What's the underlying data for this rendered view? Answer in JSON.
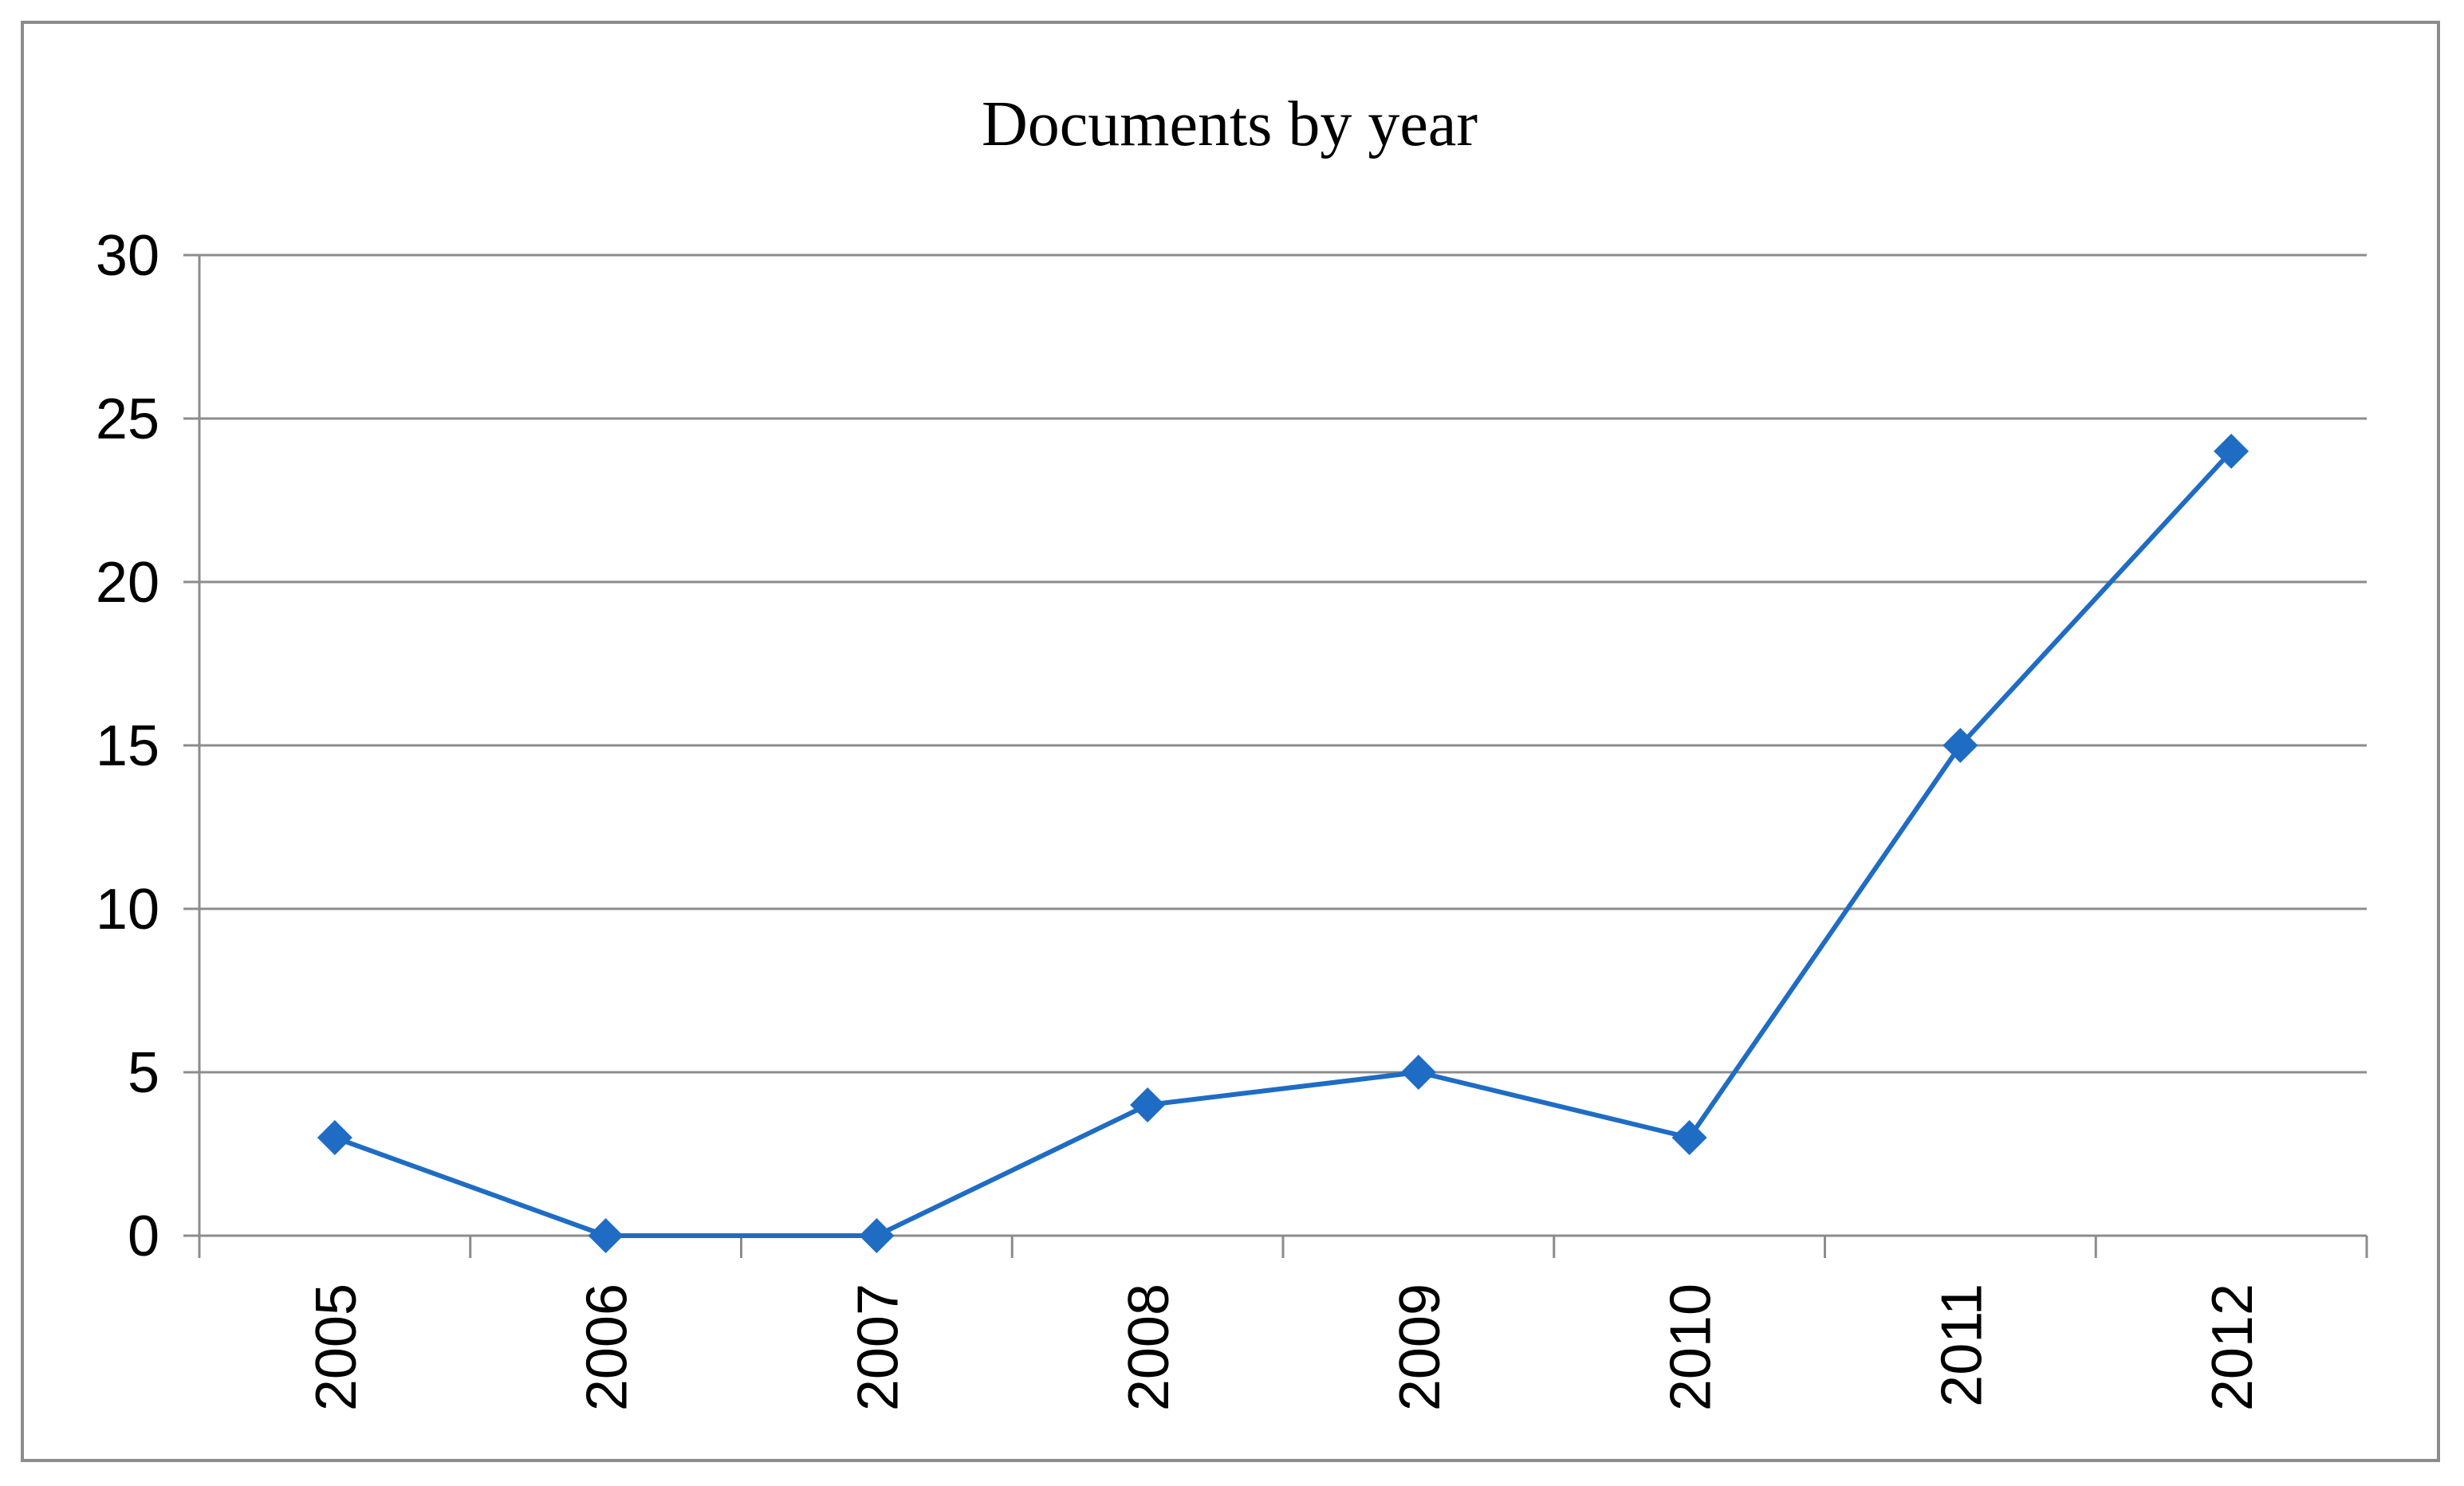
{
  "chart_data": {
    "type": "line",
    "title": "Documents by year",
    "xlabel": "",
    "ylabel": "",
    "categories": [
      "2005",
      "2006",
      "2007",
      "2008",
      "2009",
      "2010",
      "2011",
      "2012"
    ],
    "series": [
      {
        "values": [
          3,
          0,
          0,
          4,
          5,
          3,
          15,
          24
        ],
        "color": "#1f6cc4",
        "marker": "diamond"
      }
    ],
    "ylim": [
      0,
      30
    ],
    "yticks": [
      "0",
      "5",
      "10",
      "15",
      "20",
      "25",
      "30"
    ],
    "grid": true,
    "legend": "none",
    "xtick_rotation": "vertical"
  }
}
